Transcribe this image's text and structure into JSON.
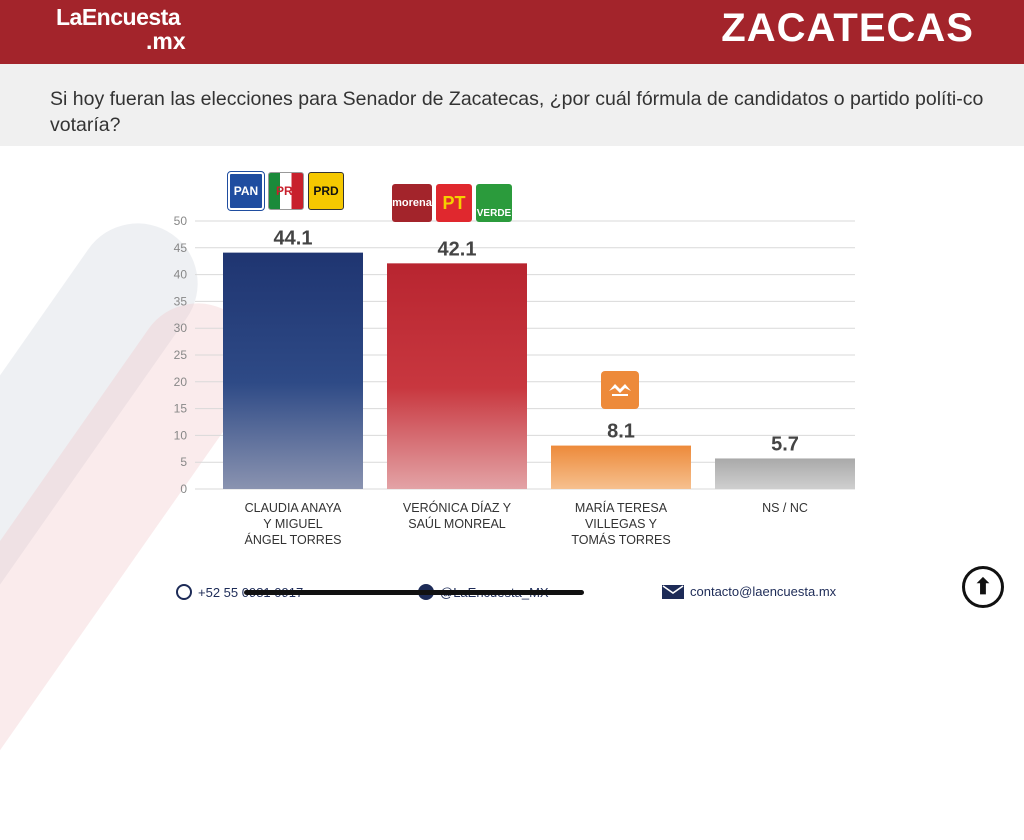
{
  "header": {
    "logo_line1": "LaEncuesta",
    "logo_line2": ".mx",
    "state": "ZACATECAS"
  },
  "question": "Si hoy fueran las elecciones para Senador de Zacatecas, ¿por cuál fórmula de candidatos o partido políti-co votaría?",
  "party_logos": {
    "group1": [
      "PAN",
      "PRI",
      "PRD"
    ],
    "group2": [
      "morena",
      "PT",
      "VERDE"
    ]
  },
  "colors": {
    "header": "#a3242b",
    "bar1": "#1f3571",
    "bar2": "#b82530",
    "bar3": "#ed8a3a",
    "bar4": "#b3b3b3"
  },
  "chart_data": {
    "type": "bar",
    "categories": [
      [
        "CLAUDIA ANAYA",
        "Y MIGUEL",
        "ÁNGEL TORRES"
      ],
      [
        "VERÓNICA DÍAZ Y",
        "SAÚL MONREAL"
      ],
      [
        "MARÍA TERESA",
        "VILLEGAS Y",
        "TOMÁS TORRES"
      ],
      [
        "NS / NC"
      ]
    ],
    "values": [
      44.1,
      42.1,
      8.1,
      5.7
    ],
    "ylim": [
      0,
      50
    ],
    "yticks": [
      0,
      5,
      10,
      15,
      20,
      25,
      30,
      35,
      40,
      45,
      50
    ],
    "grid": true
  },
  "footer": {
    "phone": "+52 55 0981 0917",
    "social": "@LaEncuesta_MX",
    "email": "contacto@laencuesta.mx"
  }
}
